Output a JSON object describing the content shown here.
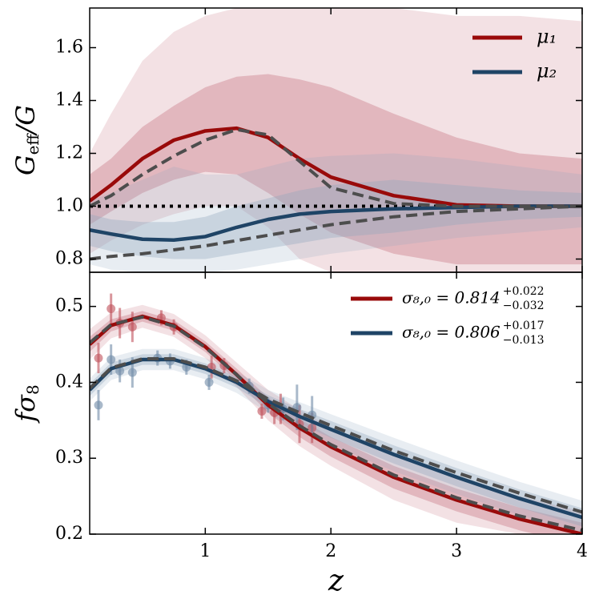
{
  "chart_data": [
    {
      "type": "line",
      "xlim": [
        0.08,
        4
      ],
      "ylim": [
        0.75,
        1.75
      ],
      "yticks": [
        0.8,
        {
          "value": 1,
          "label": "1.0"
        },
        1.2,
        1.4,
        1.6
      ],
      "ylabel": [
        "G",
        "eff",
        "/G"
      ],
      "legend": "upper right",
      "hline": 1,
      "x": [
        0.08,
        0.25,
        0.5,
        0.75,
        1,
        1.25,
        1.5,
        1.75,
        2,
        2.5,
        3,
        3.5,
        4
      ],
      "bands": [
        {
          "color": "#c46a78",
          "opacity": 0.2,
          "lower": [
            0.82,
            0.87,
            0.93,
            0.97,
            1.0,
            1.0,
            0.92,
            0.8,
            0.75,
            0.75,
            0.75,
            0.75,
            0.75
          ],
          "upper": [
            1.2,
            1.35,
            1.55,
            1.66,
            1.72,
            1.75,
            1.75,
            1.75,
            1.75,
            1.75,
            1.72,
            1.72,
            1.7
          ]
        },
        {
          "color": "#c46a78",
          "opacity": 0.35,
          "lower": [
            0.93,
            0.98,
            1.05,
            1.1,
            1.13,
            1.12,
            1.05,
            0.97,
            0.9,
            0.82,
            0.78,
            0.78,
            0.78
          ],
          "upper": [
            1.12,
            1.18,
            1.3,
            1.38,
            1.45,
            1.49,
            1.5,
            1.48,
            1.45,
            1.35,
            1.26,
            1.2,
            1.18
          ]
        },
        {
          "color": "#8ea6bc",
          "opacity": 0.2,
          "lower": [
            0.78,
            0.76,
            0.75,
            0.75,
            0.75,
            0.76,
            0.78,
            0.8,
            0.82,
            0.85,
            0.88,
            0.9,
            0.92
          ],
          "upper": [
            1.02,
            1.05,
            1.1,
            1.15,
            1.12,
            1.12,
            1.15,
            1.18,
            1.19,
            1.2,
            1.18,
            1.15,
            1.12
          ]
        },
        {
          "color": "#8ea6bc",
          "opacity": 0.35,
          "lower": [
            0.85,
            0.83,
            0.81,
            0.8,
            0.8,
            0.82,
            0.84,
            0.86,
            0.88,
            0.9,
            0.93,
            0.95,
            0.96
          ],
          "upper": [
            0.97,
            0.95,
            0.94,
            0.94,
            0.96,
            1.0,
            1.03,
            1.06,
            1.08,
            1.1,
            1.08,
            1.06,
            1.05
          ]
        }
      ],
      "series": [
        {
          "name": "μ₁",
          "color": "#990a0a",
          "values": [
            1.02,
            1.08,
            1.18,
            1.25,
            1.285,
            1.295,
            1.26,
            1.18,
            1.11,
            1.04,
            1.005,
            1.0,
            1.0
          ]
        },
        {
          "name": "μ₂",
          "color": "#1f4466",
          "values": [
            0.91,
            0.895,
            0.875,
            0.872,
            0.885,
            0.92,
            0.95,
            0.97,
            0.98,
            0.99,
            0.995,
            1.0,
            1.0
          ]
        },
        {
          "color": "#4d4d4d",
          "dash": true,
          "values": [
            1.0,
            1.04,
            1.12,
            1.19,
            1.25,
            1.29,
            1.27,
            1.17,
            1.07,
            1.01,
            1.0,
            1.0,
            1.0
          ]
        },
        {
          "color": "#4d4d4d",
          "dash": true,
          "values": [
            0.8,
            0.81,
            0.82,
            0.835,
            0.85,
            0.87,
            0.89,
            0.91,
            0.93,
            0.96,
            0.98,
            0.99,
            1.0
          ]
        }
      ]
    },
    {
      "type": "line",
      "xlim": [
        0.08,
        4
      ],
      "ylim": [
        0.2,
        0.545
      ],
      "yticks": [
        0.2,
        0.3,
        0.4,
        0.5
      ],
      "xticks": [
        1,
        2,
        3,
        4
      ],
      "ylabel": [
        "fσ",
        "8"
      ],
      "xlabel": "z",
      "legend": "upper right",
      "x": [
        0.08,
        0.25,
        0.5,
        0.75,
        1,
        1.25,
        1.5,
        1.75,
        2,
        2.5,
        3,
        3.5,
        4
      ],
      "bands": [
        {
          "color": "#c46a78",
          "opacity": 0.2,
          "lower": [
            0.43,
            0.458,
            0.472,
            0.46,
            0.432,
            0.394,
            0.35,
            0.316,
            0.29,
            0.245,
            0.215,
            0.2,
            0.2
          ],
          "upper": [
            0.47,
            0.492,
            0.502,
            0.49,
            0.462,
            0.426,
            0.39,
            0.364,
            0.34,
            0.305,
            0.275,
            0.25,
            0.23
          ]
        },
        {
          "color": "#c46a78",
          "opacity": 0.35,
          "lower": [
            0.44,
            0.467,
            0.48,
            0.468,
            0.44,
            0.402,
            0.36,
            0.328,
            0.302,
            0.26,
            0.23,
            0.205,
            0.185
          ],
          "upper": [
            0.46,
            0.483,
            0.494,
            0.482,
            0.454,
            0.418,
            0.38,
            0.352,
            0.328,
            0.29,
            0.26,
            0.235,
            0.215
          ]
        },
        {
          "color": "#8ea6bc",
          "opacity": 0.2,
          "lower": [
            0.375,
            0.403,
            0.416,
            0.416,
            0.404,
            0.386,
            0.36,
            0.336,
            0.318,
            0.283,
            0.253,
            0.225,
            0.2
          ],
          "upper": [
            0.405,
            0.433,
            0.444,
            0.444,
            0.432,
            0.414,
            0.39,
            0.374,
            0.358,
            0.327,
            0.297,
            0.269,
            0.244
          ]
        },
        {
          "color": "#8ea6bc",
          "opacity": 0.35,
          "lower": [
            0.382,
            0.41,
            0.423,
            0.423,
            0.411,
            0.393,
            0.367,
            0.345,
            0.327,
            0.293,
            0.263,
            0.235,
            0.21
          ],
          "upper": [
            0.398,
            0.426,
            0.437,
            0.437,
            0.425,
            0.407,
            0.383,
            0.365,
            0.349,
            0.317,
            0.287,
            0.259,
            0.234
          ]
        }
      ],
      "points": [
        {
          "color": "#c0505a",
          "x": [
            0.15,
            0.25,
            0.32,
            0.42,
            0.65,
            0.75,
            1.05,
            1.15,
            1.45,
            1.55,
            1.6,
            1.75,
            1.85
          ],
          "values": [
            0.432,
            0.497,
            0.478,
            0.473,
            0.485,
            0.473,
            0.42,
            0.422,
            0.362,
            0.36,
            0.365,
            0.345,
            0.34
          ],
          "errors": [
            0.02,
            0.02,
            0.02,
            0.02,
            0.01,
            0.01,
            0.015,
            0.01,
            0.01,
            0.015,
            0.02,
            0.025,
            0.02
          ]
        },
        {
          "color": "#6f8ba6",
          "x": [
            0.15,
            0.25,
            0.32,
            0.42,
            0.62,
            0.72,
            0.85,
            1.03,
            1.35,
            1.5,
            1.62,
            1.73,
            1.85
          ],
          "values": [
            0.37,
            0.43,
            0.415,
            0.413,
            0.432,
            0.428,
            0.42,
            0.4,
            0.395,
            0.37,
            0.365,
            0.367,
            0.357
          ],
          "errors": [
            0.02,
            0.02,
            0.015,
            0.02,
            0.01,
            0.01,
            0.01,
            0.01,
            0.01,
            0.01,
            0.015,
            0.03,
            0.025
          ]
        }
      ],
      "series": [
        {
          "name": "σ₈,₀ = 0.814",
          "sup": "+0.022",
          "sub": "−0.032",
          "color": "#990a0a",
          "values": [
            0.45,
            0.475,
            0.487,
            0.475,
            0.447,
            0.41,
            0.37,
            0.34,
            0.315,
            0.275,
            0.245,
            0.22,
            0.2
          ]
        },
        {
          "name": "σ₈,₀ = 0.806",
          "sup": "+0.017",
          "sub": "−0.013",
          "color": "#1f4466",
          "values": [
            0.39,
            0.418,
            0.43,
            0.43,
            0.418,
            0.4,
            0.375,
            0.355,
            0.338,
            0.305,
            0.275,
            0.247,
            0.222
          ]
        },
        {
          "color": "#4d4d4d",
          "dash": true,
          "values": [
            0.452,
            0.476,
            0.486,
            0.474,
            0.446,
            0.41,
            0.372,
            0.343,
            0.318,
            0.278,
            0.248,
            0.224,
            0.205
          ]
        },
        {
          "color": "#4d4d4d",
          "dash": true,
          "values": [
            0.392,
            0.419,
            0.431,
            0.431,
            0.42,
            0.402,
            0.378,
            0.36,
            0.343,
            0.31,
            0.281,
            0.254,
            0.229
          ]
        }
      ]
    }
  ]
}
